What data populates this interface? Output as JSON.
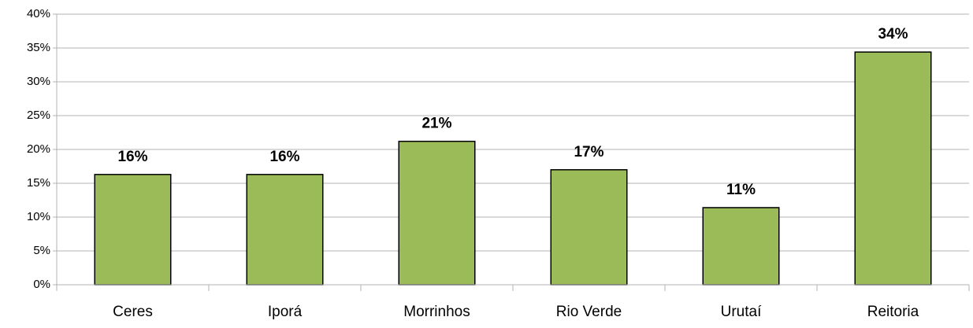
{
  "chart_data": {
    "type": "bar",
    "categories": [
      "Ceres",
      "Iporá",
      "Morrinhos",
      "Rio Verde",
      "Urutaí",
      "Reitoria"
    ],
    "values": [
      16.3,
      16.3,
      21.2,
      17.0,
      11.4,
      34.4
    ],
    "value_labels": [
      "16%",
      "16%",
      "21%",
      "17%",
      "11%",
      "34%"
    ],
    "color": "#9bbb59",
    "ylim": [
      0,
      40
    ],
    "yticks": [
      {
        "value": 0,
        "label": "0%"
      },
      {
        "value": 5,
        "label": "5%"
      },
      {
        "value": 10,
        "label": "10%"
      },
      {
        "value": 15,
        "label": "15%"
      },
      {
        "value": 20,
        "label": "20%"
      },
      {
        "value": 25,
        "label": "25%"
      },
      {
        "value": 30,
        "label": "30%"
      },
      {
        "value": 35,
        "label": "35%"
      },
      {
        "value": 40,
        "label": "40%"
      }
    ],
    "grid": true
  }
}
